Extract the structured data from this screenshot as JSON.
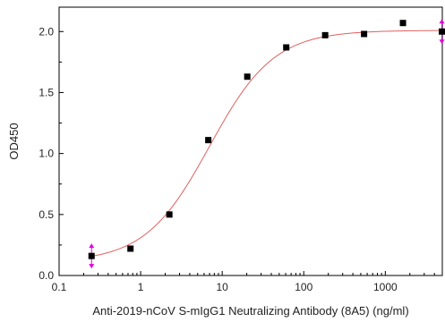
{
  "chart_data": {
    "type": "scatter",
    "title": "",
    "xlabel": "Anti-2019-nCoV S-mIgG1 Neutralizing Antibody (8A5) (ng/ml)",
    "ylabel": "OD450",
    "x_scale": "log",
    "xlim": [
      0.1,
      5000
    ],
    "ylim": [
      0.0,
      2.2
    ],
    "x_ticks": [
      {
        "value": 0.1,
        "label": "0.1"
      },
      {
        "value": 1,
        "label": "1"
      },
      {
        "value": 10,
        "label": "10"
      },
      {
        "value": 100,
        "label": "100"
      },
      {
        "value": 1000,
        "label": "1000"
      }
    ],
    "y_ticks": [
      {
        "value": 0.0,
        "label": "0.0"
      },
      {
        "value": 0.5,
        "label": "0.5"
      },
      {
        "value": 1.0,
        "label": "1.0"
      },
      {
        "value": 1.5,
        "label": "1.5"
      },
      {
        "value": 2.0,
        "label": "2.0"
      }
    ],
    "grid": false,
    "legend": "none",
    "series": [
      {
        "marker": "square",
        "color": "#000000",
        "x": [
          0.25,
          0.75,
          2.25,
          6.75,
          20.3,
          61,
          183,
          549,
          1646,
          4938
        ],
        "y": [
          0.16,
          0.22,
          0.5,
          1.11,
          1.63,
          1.87,
          1.97,
          1.98,
          2.07,
          2.0
        ]
      }
    ],
    "fit_curve": {
      "type": "4PL",
      "color": "#e06060",
      "bottom": 0.11,
      "top": 2.01,
      "ec50": 7.0,
      "hill": 1.1
    },
    "error_markers": {
      "color": "#e000e0",
      "x": [
        0.25,
        4938
      ]
    }
  }
}
